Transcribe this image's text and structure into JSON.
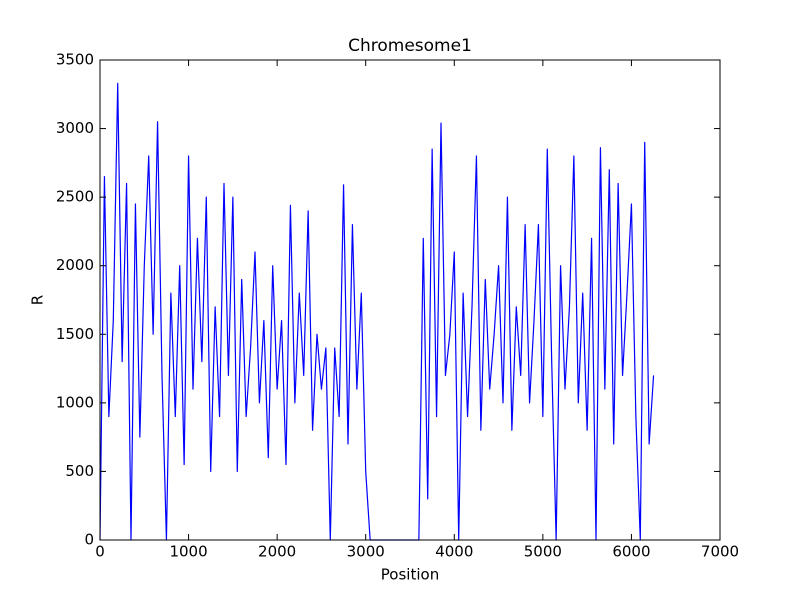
{
  "chart_data": {
    "type": "line",
    "title": "Chromesome1",
    "x_label": "Position",
    "y_label": "R",
    "x": [
      0,
      50,
      100,
      150,
      200,
      250,
      300,
      350,
      400,
      450,
      500,
      550,
      600,
      650,
      700,
      750,
      800,
      850,
      900,
      950,
      1000,
      1050,
      1100,
      1150,
      1200,
      1250,
      1300,
      1350,
      1400,
      1450,
      1500,
      1550,
      1600,
      1650,
      1700,
      1750,
      1800,
      1850,
      1900,
      1950,
      2000,
      2050,
      2100,
      2150,
      2200,
      2250,
      2300,
      2350,
      2400,
      2450,
      2500,
      2550,
      2600,
      2650,
      2700,
      2750,
      2800,
      2850,
      2900,
      2950,
      3000,
      3050,
      3100,
      3150,
      3200,
      3250,
      3300,
      3350,
      3400,
      3450,
      3500,
      3550,
      3600,
      3650,
      3700,
      3750,
      3800,
      3850,
      3900,
      3950,
      4000,
      4050,
      4100,
      4150,
      4200,
      4250,
      4300,
      4350,
      4400,
      4450,
      4500,
      4550,
      4600,
      4650,
      4700,
      4750,
      4800,
      4850,
      4900,
      4950,
      5000,
      5050,
      5100,
      5150,
      5200,
      5250,
      5300,
      5350,
      5400,
      5450,
      5500,
      5550,
      5600,
      5650,
      5700,
      5750,
      5800,
      5850,
      5900,
      5950,
      6000,
      6050,
      6100,
      6150,
      6200,
      6250
    ],
    "series": [
      {
        "name": "R",
        "color": "#0000ff",
        "values": [
          0,
          2650,
          900,
          1600,
          3330,
          1300,
          2600,
          0,
          2450,
          750,
          2000,
          2800,
          1500,
          3050,
          1200,
          0,
          1800,
          900,
          2000,
          550,
          2800,
          1100,
          2200,
          1300,
          2500,
          500,
          1700,
          900,
          2600,
          1200,
          2500,
          500,
          1900,
          900,
          1400,
          2100,
          1000,
          1600,
          600,
          2000,
          1100,
          1600,
          550,
          2440,
          1000,
          1800,
          1200,
          2400,
          800,
          1500,
          1100,
          1400,
          0,
          1400,
          900,
          2590,
          700,
          2300,
          1100,
          1800,
          500,
          0,
          0,
          0,
          0,
          0,
          0,
          0,
          0,
          0,
          0,
          0,
          0,
          2200,
          300,
          2850,
          900,
          3040,
          1200,
          1500,
          2100,
          0,
          1800,
          900,
          1700,
          2800,
          800,
          1900,
          1100,
          1500,
          2000,
          1000,
          2500,
          800,
          1700,
          1200,
          2300,
          1000,
          1600,
          2300,
          900,
          2850,
          1300,
          0,
          2000,
          1100,
          1700,
          2800,
          1000,
          1800,
          800,
          2200,
          0,
          2860,
          1100,
          2700,
          700,
          2600,
          1200,
          1800,
          2450,
          900,
          0,
          2900,
          700,
          1200
        ]
      }
    ],
    "xlim": [
      0,
      7000
    ],
    "xticks": [
      0,
      1000,
      2000,
      3000,
      4000,
      5000,
      6000,
      7000
    ],
    "ylim": [
      0,
      3500
    ],
    "yticks": [
      0,
      500,
      1000,
      1500,
      2000,
      2500,
      3000,
      3500
    ],
    "grid": false
  }
}
